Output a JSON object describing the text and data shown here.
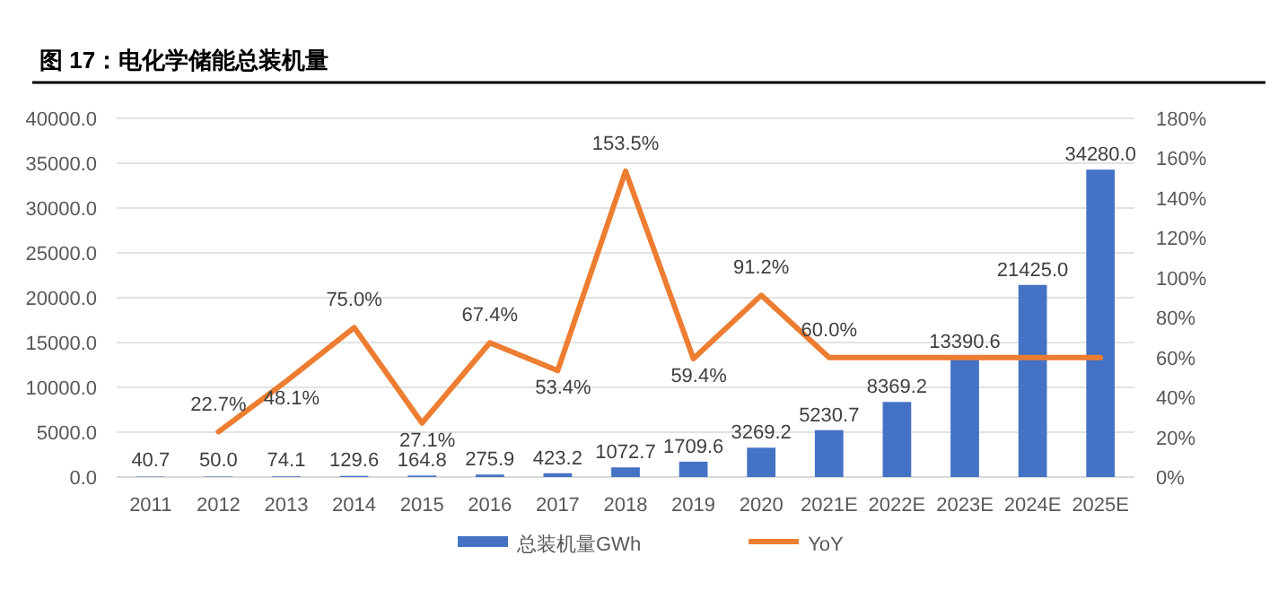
{
  "chart_data": {
    "type": "bar",
    "title": "图 17：电化学储能总装机量",
    "categories": [
      "2011",
      "2012",
      "2013",
      "2014",
      "2015",
      "2016",
      "2017",
      "2018",
      "2019",
      "2020",
      "2021E",
      "2022E",
      "2023E",
      "2024E",
      "2025E"
    ],
    "series": [
      {
        "name": "总装机量GWh",
        "color": "#4472c4",
        "values": [
          40.7,
          50.0,
          74.1,
          129.6,
          164.8,
          275.9,
          423.2,
          1072.7,
          1709.6,
          3269.2,
          5230.7,
          8369.2,
          13390.6,
          21425.0,
          34280.0
        ],
        "value_labels": [
          "40.7",
          "50.0",
          "74.1",
          "129.6",
          "164.8",
          "275.9",
          "423.2",
          "1072.7",
          "1709.6",
          "3269.2",
          "5230.7",
          "8369.2",
          "13390.6",
          "21425.0",
          "34280.0"
        ]
      },
      {
        "name": "YoY",
        "type": "line",
        "axis": "y2",
        "color": "#ed7d31",
        "values": [
          null,
          22.7,
          48.1,
          75.0,
          27.1,
          67.4,
          53.4,
          153.5,
          59.4,
          91.2,
          60.0,
          60,
          60,
          60,
          60
        ],
        "value_labels": [
          null,
          "22.7%",
          "48.1%",
          "75.0%",
          "27.1%",
          "67.4%",
          "53.4%",
          "153.5%",
          "59.4%",
          "91.2%",
          "60.0%",
          null,
          null,
          null,
          null
        ]
      }
    ],
    "ylim": [
      0,
      40000
    ],
    "yticks": [
      {
        "value": 0,
        "label": "0.0"
      },
      {
        "value": 5000,
        "label": "5000.0"
      },
      {
        "value": 10000,
        "label": "10000.0"
      },
      {
        "value": 15000,
        "label": "15000.0"
      },
      {
        "value": 20000,
        "label": "20000.0"
      },
      {
        "value": 25000,
        "label": "25000.0"
      },
      {
        "value": 30000,
        "label": "30000.0"
      },
      {
        "value": 35000,
        "label": "35000.0"
      },
      {
        "value": 40000,
        "label": "40000.0"
      }
    ],
    "y2lim": [
      0,
      180
    ],
    "y2ticks": [
      {
        "value": 0,
        "label": "0%"
      },
      {
        "value": 20,
        "label": "20%"
      },
      {
        "value": 40,
        "label": "40%"
      },
      {
        "value": 60,
        "label": "60%"
      },
      {
        "value": 80,
        "label": "80%"
      },
      {
        "value": 100,
        "label": "100%"
      },
      {
        "value": 120,
        "label": "120%"
      },
      {
        "value": 140,
        "label": "140%"
      },
      {
        "value": 160,
        "label": "160%"
      },
      {
        "value": 180,
        "label": "180%"
      }
    ],
    "grid": "y",
    "legend": "bottom",
    "marker": "none"
  }
}
